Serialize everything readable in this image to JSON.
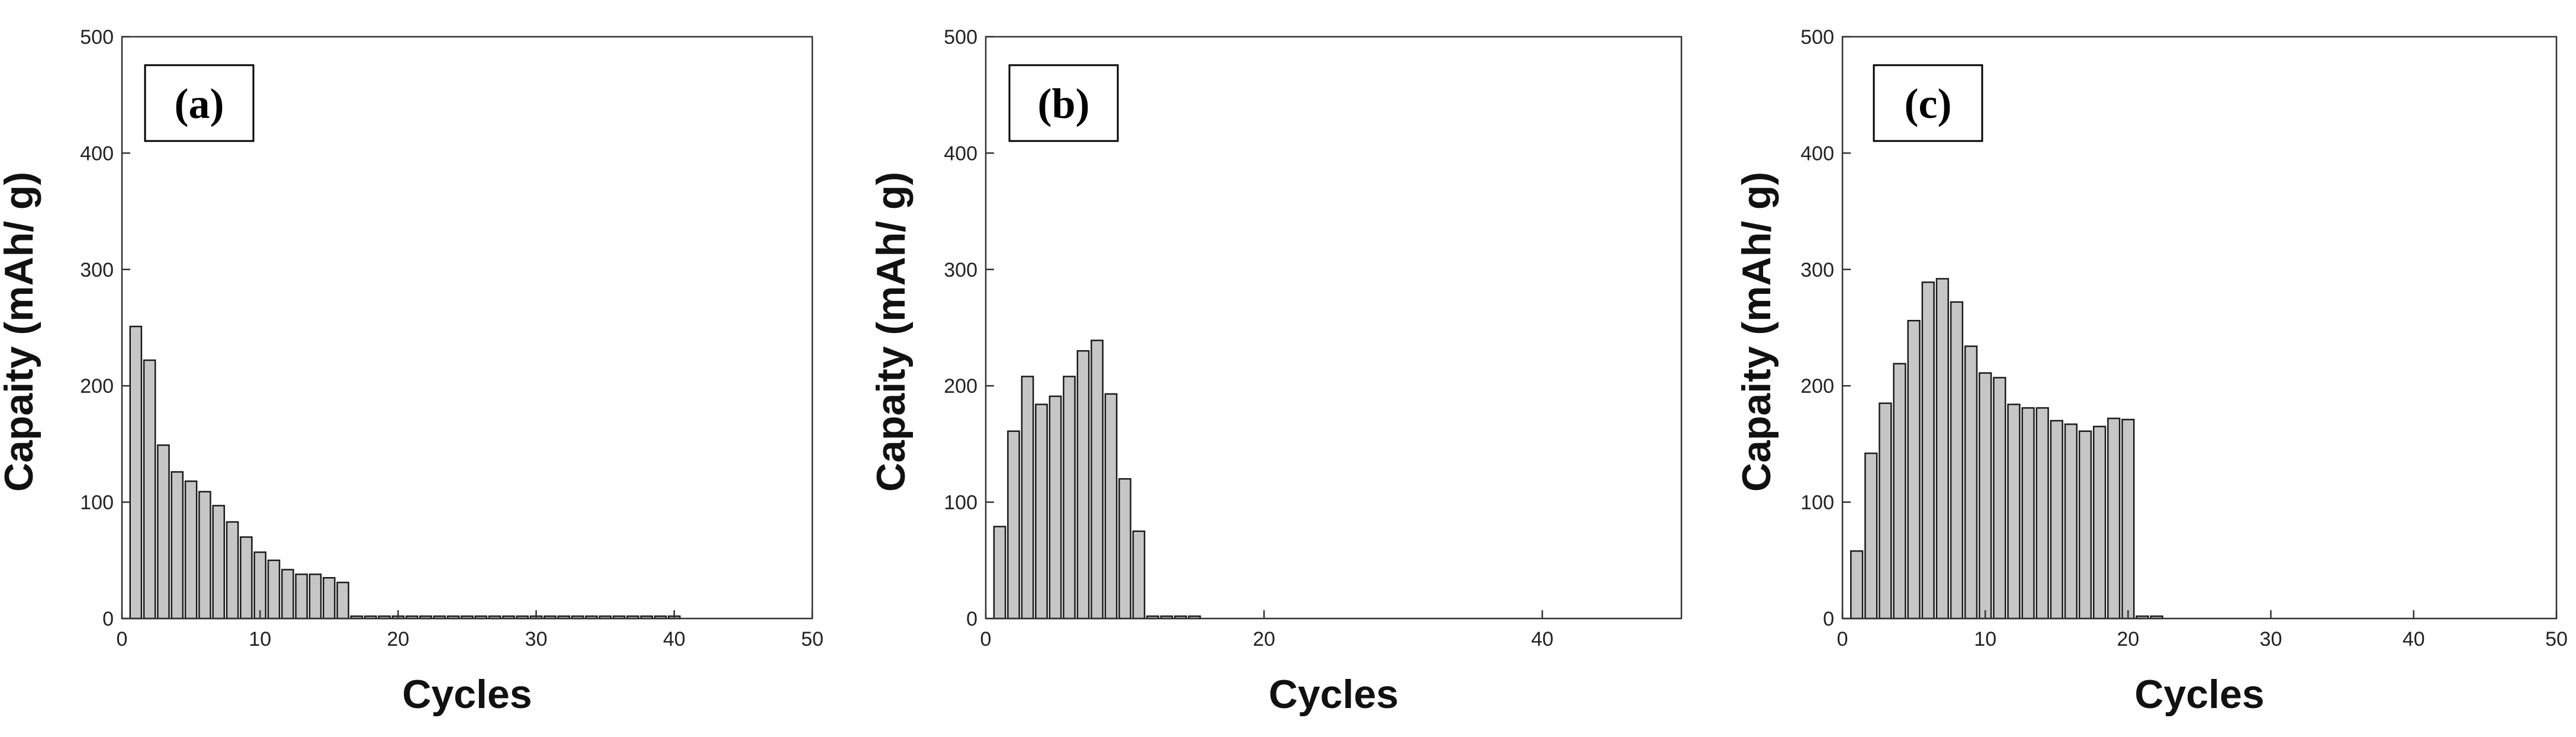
{
  "chart_data": [
    {
      "type": "bar",
      "panel_label": "(a)",
      "xlabel": "Cycles",
      "ylabel": "Capaity (mAh/ g)",
      "xlim": [
        0,
        50
      ],
      "ylim": [
        0,
        500
      ],
      "xticks": [
        0,
        10,
        20,
        30,
        40,
        50
      ],
      "yticks": [
        0,
        100,
        200,
        300,
        400,
        500
      ],
      "x": [
        1,
        2,
        3,
        4,
        5,
        6,
        7,
        8,
        9,
        10,
        11,
        12,
        13,
        14,
        15,
        16,
        17,
        18,
        19,
        20,
        21,
        22,
        23,
        24,
        25,
        26,
        27,
        28,
        29,
        30,
        31,
        32,
        33,
        34,
        35,
        36,
        37,
        38,
        39,
        40
      ],
      "values": [
        251,
        222,
        149,
        126,
        118,
        109,
        97,
        83,
        70,
        57,
        50,
        42,
        38,
        38,
        35,
        31,
        2,
        2,
        2,
        2,
        2,
        2,
        2,
        2,
        2,
        2,
        2,
        2,
        2,
        2,
        2,
        2,
        2,
        2,
        2,
        2,
        2,
        2,
        2,
        2
      ]
    },
    {
      "type": "bar",
      "panel_label": "(b)",
      "xlabel": "Cycles",
      "ylabel": "Capaity (mAh/ g)",
      "xlim": [
        0,
        50
      ],
      "ylim": [
        0,
        500
      ],
      "xticks": [
        0,
        20,
        40
      ],
      "yticks": [
        0,
        100,
        200,
        300,
        400,
        500
      ],
      "x": [
        1,
        2,
        3,
        4,
        5,
        6,
        7,
        8,
        9,
        10,
        11,
        12,
        13,
        14,
        15
      ],
      "values": [
        79,
        161,
        208,
        184,
        191,
        208,
        230,
        239,
        193,
        120,
        75,
        2,
        2,
        2,
        2
      ]
    },
    {
      "type": "bar",
      "panel_label": "(c)",
      "xlabel": "Cycles",
      "ylabel": "Capaity (mAh/ g)",
      "xlim": [
        0,
        50
      ],
      "ylim": [
        0,
        500
      ],
      "xticks": [
        0,
        10,
        20,
        30,
        40,
        50
      ],
      "yticks": [
        0,
        100,
        200,
        300,
        400,
        500
      ],
      "x": [
        1,
        2,
        3,
        4,
        5,
        6,
        7,
        8,
        9,
        10,
        11,
        12,
        13,
        14,
        15,
        16,
        17,
        18,
        19,
        20,
        21,
        22
      ],
      "values": [
        58,
        142,
        185,
        219,
        256,
        289,
        292,
        272,
        234,
        211,
        207,
        184,
        181,
        181,
        170,
        167,
        161,
        165,
        172,
        171,
        2,
        2
      ]
    }
  ]
}
